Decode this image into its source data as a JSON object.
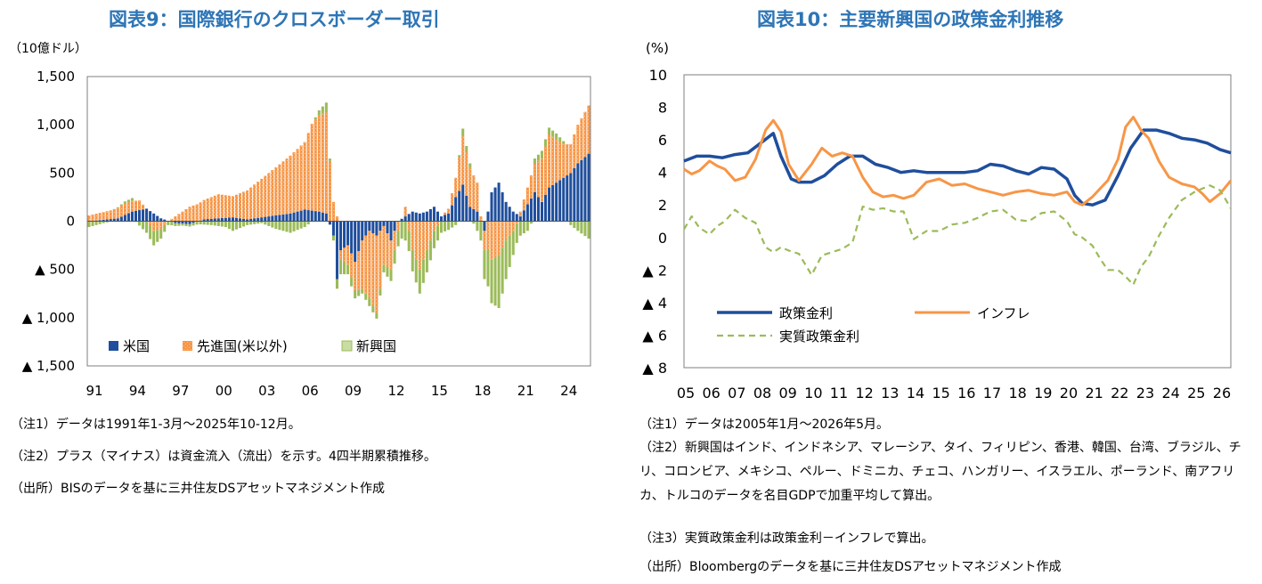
{
  "left": {
    "title": "図表9：国際銀行のクロスボーダー取引",
    "unit": "（10億ドル）",
    "notes": [
      "（注1）データは1991年1-3月～2025年10-12月。",
      "（注2）プラス（マイナス）は資金流入（流出）を示す。4四半期累積推移。",
      "（出所）BISのデータを基に三井住友DSアセットマネジメント作成"
    ]
  },
  "right": {
    "title": "図表10：主要新興国の政策金利推移",
    "unit": "(%)",
    "notes": [
      "（注1）データは2005年1月～2026年5月。",
      "（注2）新興国はインド、インドネシア、マレーシア、タイ、フィリピン、香港、韓国、台湾、ブラジル、チリ、コロンビア、メキシコ、ペルー、ドミニカ、チェコ、ハンガリー、イスラエル、ポーランド、南アフリカ、トルコのデータを名目GDPで加重平均して算出。",
      "（注3）実質政策金利は政策金利－インフレで算出。",
      "（出所）Bloombergのデータを基に三井住友DSアセットマネジメント作成"
    ]
  },
  "chart_data": [
    {
      "type": "bar",
      "stacked": true,
      "title": "図表9：国際銀行のクロスボーダー取引",
      "ylabel": "（10億ドル）",
      "ylim": [
        -1500,
        1500
      ],
      "yticks": [
        1500,
        1000,
        500,
        0,
        -500,
        -1000,
        -1500
      ],
      "ytick_labels": [
        "1,500",
        "1,000",
        "500",
        "0",
        "▲ 500",
        "▲ 1,000",
        "▲ 1,500"
      ],
      "xtick_labels": [
        "91",
        "94",
        "97",
        "00",
        "03",
        "06",
        "09",
        "12",
        "15",
        "18",
        "21",
        "24"
      ],
      "x_start": "1991Q1",
      "x_end": "2025Q4",
      "legend_position": "bottom-left",
      "colors": {
        "us": "#1F4E9C",
        "advanced": "#F79646",
        "emerging": "#9BBB59"
      },
      "series": [
        {
          "name": "米国",
          "key": "us",
          "keyframes": [
            [
              0,
              0
            ],
            [
              8,
              30
            ],
            [
              12,
              100
            ],
            [
              16,
              130
            ],
            [
              20,
              30
            ],
            [
              24,
              -20
            ],
            [
              28,
              -30
            ],
            [
              32,
              20
            ],
            [
              36,
              30
            ],
            [
              40,
              40
            ],
            [
              44,
              20
            ],
            [
              48,
              40
            ],
            [
              52,
              60
            ],
            [
              56,
              80
            ],
            [
              60,
              120
            ],
            [
              64,
              100
            ],
            [
              66,
              80
            ],
            [
              68,
              -150
            ],
            [
              69,
              -600
            ],
            [
              70,
              -300
            ],
            [
              72,
              -250
            ],
            [
              74,
              -420
            ],
            [
              76,
              -200
            ],
            [
              78,
              -100
            ],
            [
              80,
              -150
            ],
            [
              82,
              -50
            ],
            [
              84,
              -200
            ],
            [
              86,
              0
            ],
            [
              88,
              50
            ],
            [
              90,
              100
            ],
            [
              92,
              80
            ],
            [
              94,
              100
            ],
            [
              96,
              150
            ],
            [
              98,
              50
            ],
            [
              100,
              80
            ],
            [
              102,
              250
            ],
            [
              104,
              380
            ],
            [
              106,
              150
            ],
            [
              108,
              100
            ],
            [
              110,
              -100
            ],
            [
              112,
              300
            ],
            [
              114,
              400
            ],
            [
              116,
              200
            ],
            [
              118,
              100
            ],
            [
              120,
              50
            ],
            [
              124,
              300
            ],
            [
              126,
              200
            ],
            [
              128,
              350
            ],
            [
              130,
              400
            ],
            [
              132,
              450
            ],
            [
              134,
              500
            ],
            [
              136,
              600
            ],
            [
              139,
              700
            ]
          ]
        },
        {
          "name": "先進国(米以外)",
          "key": "advanced",
          "keyframes": [
            [
              0,
              60
            ],
            [
              6,
              90
            ],
            [
              10,
              120
            ],
            [
              14,
              100
            ],
            [
              18,
              -100
            ],
            [
              20,
              -80
            ],
            [
              22,
              0
            ],
            [
              24,
              50
            ],
            [
              28,
              150
            ],
            [
              32,
              200
            ],
            [
              36,
              250
            ],
            [
              40,
              220
            ],
            [
              44,
              300
            ],
            [
              48,
              400
            ],
            [
              52,
              500
            ],
            [
              56,
              600
            ],
            [
              60,
              700
            ],
            [
              62,
              900
            ],
            [
              64,
              1000
            ],
            [
              66,
              1050
            ],
            [
              68,
              200
            ],
            [
              70,
              -100
            ],
            [
              72,
              -200
            ],
            [
              74,
              -300
            ],
            [
              76,
              -500
            ],
            [
              78,
              -700
            ],
            [
              80,
              -800
            ],
            [
              82,
              -400
            ],
            [
              84,
              -300
            ],
            [
              86,
              -100
            ],
            [
              88,
              100
            ],
            [
              90,
              -300
            ],
            [
              92,
              -500
            ],
            [
              94,
              -300
            ],
            [
              96,
              -100
            ],
            [
              98,
              0
            ],
            [
              100,
              50
            ],
            [
              102,
              200
            ],
            [
              104,
              500
            ],
            [
              106,
              400
            ],
            [
              108,
              300
            ],
            [
              110,
              -200
            ],
            [
              112,
              -400
            ],
            [
              114,
              -350
            ],
            [
              116,
              -200
            ],
            [
              118,
              -100
            ],
            [
              120,
              50
            ],
            [
              124,
              300
            ],
            [
              126,
              450
            ],
            [
              128,
              550
            ],
            [
              130,
              450
            ],
            [
              132,
              350
            ],
            [
              134,
              300
            ],
            [
              136,
              400
            ],
            [
              139,
              500
            ]
          ]
        },
        {
          "name": "新興国",
          "key": "emerging",
          "keyframes": [
            [
              0,
              -60
            ],
            [
              4,
              -20
            ],
            [
              8,
              10
            ],
            [
              12,
              30
            ],
            [
              16,
              -120
            ],
            [
              18,
              -150
            ],
            [
              20,
              -100
            ],
            [
              22,
              -40
            ],
            [
              26,
              -20
            ],
            [
              30,
              -30
            ],
            [
              34,
              -40
            ],
            [
              38,
              -60
            ],
            [
              40,
              -100
            ],
            [
              44,
              -40
            ],
            [
              48,
              -20
            ],
            [
              52,
              -80
            ],
            [
              56,
              -120
            ],
            [
              60,
              -60
            ],
            [
              64,
              50
            ],
            [
              66,
              100
            ],
            [
              68,
              -50
            ],
            [
              70,
              -150
            ],
            [
              72,
              -100
            ],
            [
              74,
              -80
            ],
            [
              76,
              -50
            ],
            [
              78,
              -80
            ],
            [
              80,
              -60
            ],
            [
              82,
              -80
            ],
            [
              84,
              -120
            ],
            [
              86,
              -160
            ],
            [
              88,
              -200
            ],
            [
              90,
              -220
            ],
            [
              92,
              -250
            ],
            [
              94,
              -230
            ],
            [
              96,
              -180
            ],
            [
              98,
              -120
            ],
            [
              100,
              -90
            ],
            [
              102,
              -40
            ],
            [
              104,
              80
            ],
            [
              106,
              50
            ],
            [
              108,
              -100
            ],
            [
              110,
              -300
            ],
            [
              112,
              -450
            ],
            [
              114,
              -550
            ],
            [
              116,
              -400
            ],
            [
              118,
              -250
            ],
            [
              120,
              -150
            ],
            [
              122,
              -100
            ],
            [
              124,
              50
            ],
            [
              126,
              80
            ],
            [
              128,
              70
            ],
            [
              130,
              60
            ],
            [
              132,
              30
            ],
            [
              134,
              -40
            ],
            [
              136,
              -100
            ],
            [
              139,
              -180
            ]
          ]
        }
      ],
      "n_quarters": 140
    },
    {
      "type": "line",
      "title": "図表10：主要新興国の政策金利推移",
      "ylabel": "(%)",
      "ylim": [
        -8,
        10
      ],
      "yticks": [
        10,
        8,
        6,
        4,
        2,
        0,
        -2,
        -4,
        -6,
        -8
      ],
      "ytick_labels": [
        "10",
        "8",
        "6",
        "4",
        "2",
        "0",
        "▲ 2",
        "▲ 4",
        "▲ 6",
        "▲ 8"
      ],
      "xtick_labels": [
        "05",
        "06",
        "07",
        "08",
        "09",
        "10",
        "11",
        "12",
        "13",
        "14",
        "15",
        "16",
        "17",
        "18",
        "19",
        "20",
        "21",
        "22",
        "23",
        "24",
        "25",
        "26"
      ],
      "x_unit": "year",
      "xlim": [
        2005.0,
        2026.42
      ],
      "legend_position": "lower-left inside plot",
      "series": [
        {
          "name": "政策金利",
          "color": "#1F4E9C",
          "style": "solid",
          "x": [
            2005.0,
            2005.5,
            2006.0,
            2006.5,
            2007.0,
            2007.5,
            2008.0,
            2008.5,
            2008.8,
            2009.2,
            2009.5,
            2010.0,
            2010.5,
            2011.0,
            2011.5,
            2012.0,
            2012.5,
            2013.0,
            2013.5,
            2014.0,
            2014.5,
            2015.0,
            2015.5,
            2016.0,
            2016.5,
            2017.0,
            2017.5,
            2018.0,
            2018.5,
            2019.0,
            2019.5,
            2020.0,
            2020.3,
            2020.6,
            2021.0,
            2021.5,
            2022.0,
            2022.5,
            2023.0,
            2023.5,
            2024.0,
            2024.5,
            2025.0,
            2025.5,
            2026.0,
            2026.42
          ],
          "y": [
            4.7,
            5.0,
            5.0,
            4.9,
            5.1,
            5.2,
            5.8,
            6.4,
            5.0,
            3.6,
            3.4,
            3.4,
            3.8,
            4.5,
            5.0,
            5.0,
            4.5,
            4.3,
            4.0,
            4.1,
            4.0,
            4.0,
            4.0,
            4.0,
            4.1,
            4.5,
            4.4,
            4.1,
            3.9,
            4.3,
            4.2,
            3.6,
            2.6,
            2.1,
            2.0,
            2.3,
            3.8,
            5.5,
            6.6,
            6.6,
            6.4,
            6.1,
            6.0,
            5.8,
            5.4,
            5.2
          ]
        },
        {
          "name": "インフレ",
          "color": "#F79646",
          "style": "solid",
          "x": [
            2005.0,
            2005.3,
            2005.6,
            2006.0,
            2006.3,
            2006.6,
            2007.0,
            2007.4,
            2007.8,
            2008.2,
            2008.5,
            2008.8,
            2009.1,
            2009.5,
            2010.0,
            2010.4,
            2010.8,
            2011.2,
            2011.6,
            2012.0,
            2012.4,
            2012.8,
            2013.2,
            2013.6,
            2014.0,
            2014.5,
            2015.0,
            2015.5,
            2016.0,
            2016.5,
            2017.0,
            2017.5,
            2018.0,
            2018.5,
            2019.0,
            2019.5,
            2020.0,
            2020.3,
            2020.6,
            2021.0,
            2021.3,
            2021.6,
            2022.0,
            2022.3,
            2022.6,
            2022.9,
            2023.2,
            2023.6,
            2024.0,
            2024.5,
            2025.0,
            2025.3,
            2025.6,
            2026.0,
            2026.42
          ],
          "y": [
            4.2,
            3.9,
            4.1,
            4.7,
            4.4,
            4.2,
            3.5,
            3.7,
            4.8,
            6.6,
            7.2,
            6.5,
            4.5,
            3.5,
            4.5,
            5.5,
            5.0,
            5.2,
            5.0,
            3.7,
            2.8,
            2.5,
            2.6,
            2.4,
            2.6,
            3.4,
            3.6,
            3.2,
            3.3,
            3.0,
            2.8,
            2.6,
            2.8,
            2.9,
            2.7,
            2.6,
            2.8,
            2.2,
            2.0,
            2.5,
            3.0,
            3.5,
            4.8,
            6.8,
            7.4,
            6.6,
            6.1,
            4.7,
            3.7,
            3.3,
            3.1,
            2.7,
            2.2,
            2.7,
            3.5
          ]
        },
        {
          "name": "実質政策金利",
          "color": "#9BBB59",
          "style": "dashed",
          "x": [
            2005.0,
            2005.3,
            2005.6,
            2006.0,
            2006.3,
            2006.6,
            2007.0,
            2007.4,
            2007.8,
            2008.2,
            2008.5,
            2008.8,
            2009.1,
            2009.5,
            2010.0,
            2010.4,
            2010.8,
            2011.2,
            2011.6,
            2012.0,
            2012.4,
            2012.8,
            2013.2,
            2013.6,
            2014.0,
            2014.5,
            2015.0,
            2015.5,
            2016.0,
            2016.5,
            2017.0,
            2017.5,
            2018.0,
            2018.5,
            2019.0,
            2019.5,
            2020.0,
            2020.3,
            2020.6,
            2021.0,
            2021.3,
            2021.6,
            2022.0,
            2022.3,
            2022.6,
            2022.9,
            2023.2,
            2023.6,
            2024.0,
            2024.5,
            2025.0,
            2025.3,
            2025.6,
            2026.0,
            2026.42
          ],
          "y": [
            0.5,
            1.3,
            0.6,
            0.2,
            0.7,
            1.0,
            1.7,
            1.2,
            0.9,
            -0.6,
            -0.9,
            -0.6,
            -0.8,
            -1.0,
            -2.3,
            -1.1,
            -0.9,
            -0.7,
            -0.3,
            1.9,
            1.7,
            1.8,
            1.6,
            1.6,
            -0.1,
            0.4,
            0.4,
            0.8,
            0.9,
            1.2,
            1.6,
            1.7,
            1.1,
            1.0,
            1.5,
            1.6,
            1.0,
            0.2,
            0.0,
            -0.5,
            -1.3,
            -2.0,
            -2.0,
            -2.4,
            -2.9,
            -1.8,
            -1.2,
            0.1,
            1.2,
            2.3,
            2.8,
            3.0,
            3.2,
            2.9,
            1.8
          ]
        }
      ]
    }
  ]
}
